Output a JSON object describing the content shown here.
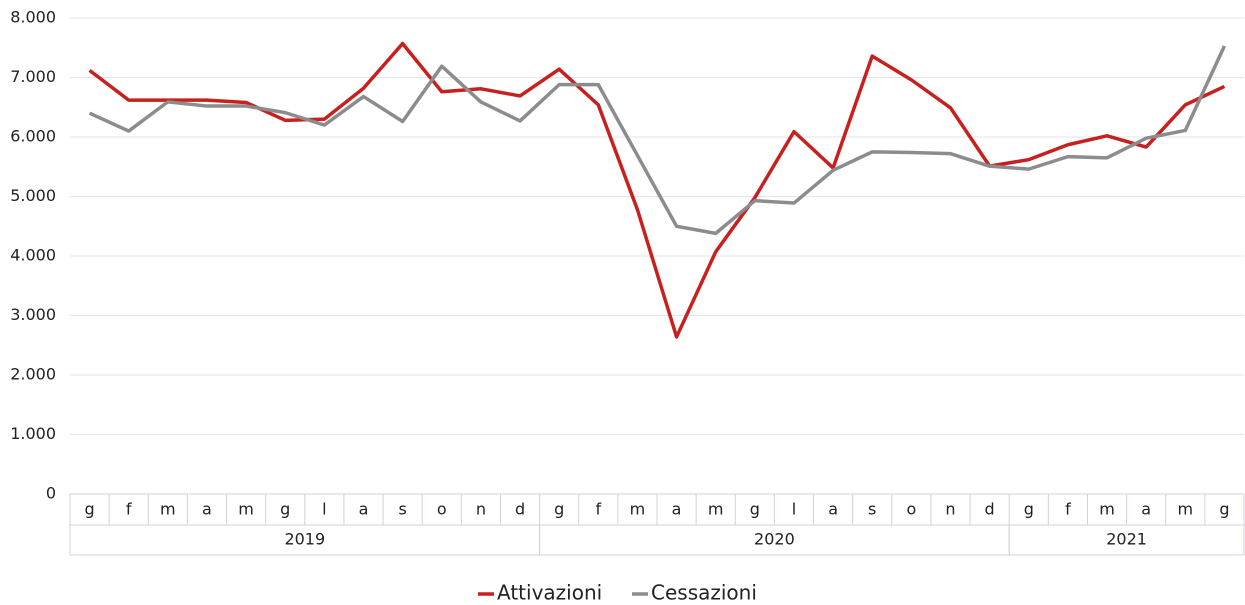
{
  "chart_data": {
    "type": "line",
    "categories": [
      "g",
      "f",
      "m",
      "a",
      "m",
      "g",
      "l",
      "a",
      "s",
      "o",
      "n",
      "d",
      "g",
      "f",
      "m",
      "a",
      "m",
      "g",
      "l",
      "a",
      "s",
      "o",
      "n",
      "d",
      "g",
      "f",
      "m",
      "a",
      "m",
      "g"
    ],
    "year_labels": [
      "2019",
      null,
      null,
      null,
      null,
      null,
      null,
      null,
      null,
      null,
      null,
      null,
      "2020",
      null,
      null,
      null,
      null,
      null,
      null,
      null,
      null,
      null,
      null,
      null,
      "2021",
      null,
      null,
      null,
      null,
      null
    ],
    "series": [
      {
        "name": "Attivazioni",
        "color": "#c8201e",
        "values": [
          7120,
          6620,
          6620,
          6620,
          6580,
          6280,
          6300,
          6820,
          7570,
          6760,
          6810,
          6690,
          7140,
          6540,
          4780,
          2640,
          4070,
          4980,
          6090,
          5480,
          7360,
          6960,
          6490,
          5510,
          5620,
          5870,
          6020,
          5830,
          6540,
          6850
        ]
      },
      {
        "name": "Cessazioni",
        "color": "#8c8c8c",
        "values": [
          6400,
          6100,
          6590,
          6520,
          6520,
          6410,
          6200,
          6680,
          6260,
          7190,
          6590,
          6270,
          6880,
          6880,
          5690,
          4500,
          4380,
          4930,
          4890,
          5440,
          5750,
          5740,
          5720,
          5510,
          5460,
          5670,
          5650,
          5980,
          6110,
          7530
        ]
      }
    ],
    "ylim": [
      0,
      8000
    ],
    "yticks": [
      0,
      {
        "value": 1000,
        "label": "1.000"
      },
      {
        "value": 2000,
        "label": "2.000"
      },
      {
        "value": 3000,
        "label": "3.000"
      },
      {
        "value": 4000,
        "label": "4.000"
      },
      {
        "value": 5000,
        "label": "5.000"
      },
      {
        "value": 6000,
        "label": "6.000"
      },
      {
        "value": 7000,
        "label": "7.000"
      },
      {
        "value": 8000,
        "label": "8.000"
      }
    ],
    "grid": true,
    "legend": "bottom"
  }
}
